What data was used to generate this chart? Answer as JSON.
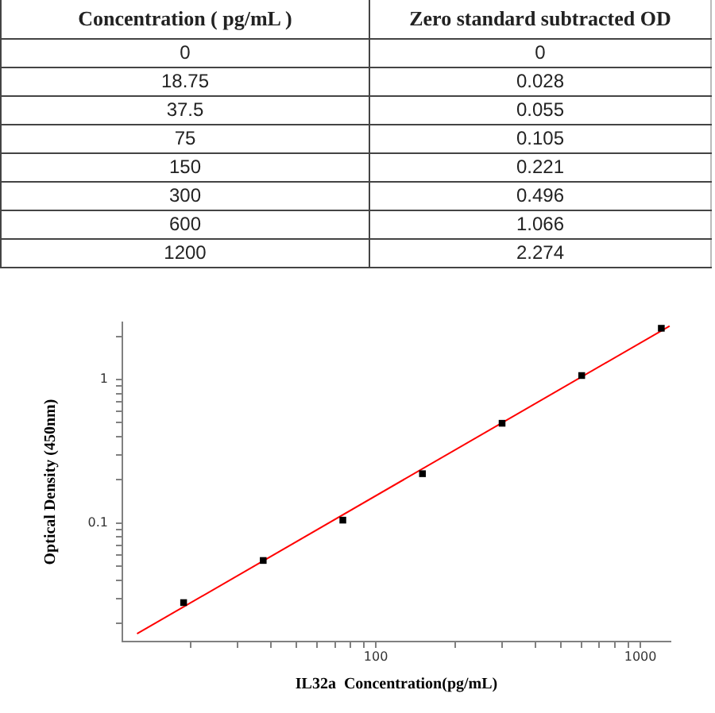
{
  "chart_data": [
    {
      "type": "other",
      "xlabel": "Concentration ( pg/mL )",
      "ylabel": "Zero standard subtracted OD",
      "categories": [
        "0",
        "18.75",
        "37.5",
        "75",
        "150",
        "300",
        "600",
        "1200"
      ],
      "values": [
        0,
        0.028,
        0.055,
        0.105,
        0.221,
        0.496,
        1.066,
        2.274
      ],
      "data_labels": true
    },
    {
      "type": "scatter",
      "xlabel": "IL32a  Concentration(pg/mL)",
      "ylabel": "Optical Density (450nm)",
      "log": "xy",
      "grid": false,
      "xlim": [
        11,
        1300
      ],
      "ylim": [
        0.015,
        2.5
      ],
      "xticks": [
        {
          "value": 20,
          "label": null
        },
        {
          "value": 30,
          "label": null
        },
        {
          "value": 40,
          "label": null
        },
        {
          "value": 50,
          "label": null
        },
        {
          "value": 60,
          "label": null
        },
        {
          "value": 70,
          "label": null
        },
        {
          "value": 80,
          "label": null
        },
        {
          "value": 90,
          "label": null
        },
        100,
        {
          "value": 200,
          "label": null
        },
        {
          "value": 300,
          "label": null
        },
        {
          "value": 400,
          "label": null
        },
        {
          "value": 500,
          "label": null
        },
        {
          "value": 600,
          "label": null
        },
        {
          "value": 700,
          "label": null
        },
        {
          "value": 800,
          "label": null
        },
        {
          "value": 900,
          "label": null
        },
        1000
      ],
      "yticks": [
        {
          "value": 0.02,
          "label": null
        },
        {
          "value": 0.03,
          "label": null
        },
        {
          "value": 0.04,
          "label": null
        },
        {
          "value": 0.05,
          "label": null
        },
        {
          "value": 0.06,
          "label": null
        },
        {
          "value": 0.07,
          "label": null
        },
        {
          "value": 0.08,
          "label": null
        },
        {
          "value": 0.09,
          "label": null
        },
        0.1,
        {
          "value": 0.2,
          "label": null
        },
        {
          "value": 0.3,
          "label": null
        },
        {
          "value": 0.4,
          "label": null
        },
        {
          "value": 0.5,
          "label": null
        },
        {
          "value": 0.6,
          "label": null
        },
        {
          "value": 0.7,
          "label": null
        },
        {
          "value": 0.8,
          "label": null
        },
        {
          "value": 0.9,
          "label": null
        },
        1,
        {
          "value": 2,
          "label": null
        }
      ],
      "series": [
        {
          "type": "line",
          "color": "#ff0000",
          "x": [
            12.5,
            1290
          ],
          "values": [
            0.017,
            2.36
          ]
        },
        {
          "type": "scatter",
          "color": "#000000",
          "marker": "square",
          "x": [
            18.75,
            37.5,
            75,
            150,
            300,
            600,
            1200
          ],
          "values": [
            0.028,
            0.055,
            0.105,
            0.221,
            0.496,
            1.066,
            2.274
          ]
        }
      ]
    }
  ]
}
